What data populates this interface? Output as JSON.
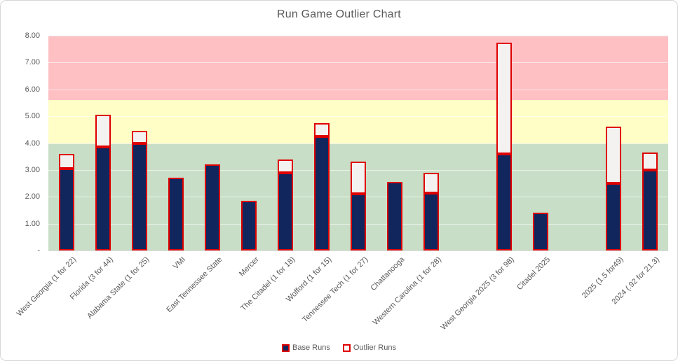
{
  "chart_data": {
    "type": "bar",
    "stacked": true,
    "title": "Run Game Outlier Chart",
    "xlabel": "",
    "ylabel": "",
    "ylim": [
      0,
      8
    ],
    "ytick_step": 1,
    "ytick_labels_top_to_bottom": [
      "8.00",
      "7.00",
      "6.00",
      "5.00",
      "4.00",
      "3.00",
      "2.00",
      "1.00",
      "-"
    ],
    "grid": true,
    "legend_position": "bottom-center",
    "categories": [
      "West Georgia (1 for 22)",
      "Florida (3 for 44)",
      "Alabama State (1 for 25)",
      "VMI",
      "East Tennessee State",
      "Mercer",
      "The Citadel (1 for 18)",
      "Wofford (1 for 15)",
      "Tennessee Tech (1 for 27)",
      "Chattanooga",
      "Western Carolina (1 for 28)",
      "",
      "West Georgia 2025 (3 for 98)",
      "Citadel 2025",
      "",
      "2025 (1.5 for49)",
      "2024 (.92 for 21.3)"
    ],
    "series": [
      {
        "name": "Base Runs",
        "fill_color": "#12265E",
        "border_color": "#DF0000",
        "values": [
          3.05,
          3.85,
          4.0,
          2.7,
          3.2,
          1.85,
          2.9,
          4.25,
          2.1,
          2.55,
          2.15,
          null,
          3.6,
          1.4,
          null,
          2.5,
          3.0
        ]
      },
      {
        "name": "Outlier Runs",
        "fill_color": "#F4F2F1",
        "border_color": "#DF0000",
        "values": [
          0.55,
          1.2,
          0.45,
          0,
          0,
          0,
          0.5,
          0.5,
          1.2,
          0,
          0.75,
          null,
          4.15,
          0,
          null,
          2.1,
          0.65
        ]
      }
    ],
    "background_bands": [
      {
        "name": "green-zone",
        "from": 0,
        "to": 4,
        "color": "#C8DEC6"
      },
      {
        "name": "yellow-zone",
        "from": 4,
        "to": 5.6,
        "color": "#FEFEC6"
      },
      {
        "name": "red-zone",
        "from": 5.6,
        "to": 8,
        "color": "#FFC0C4"
      }
    ],
    "colors": {
      "title_text": "#595959",
      "axis_text": "#595959",
      "gridline": "#D9D9D9",
      "frame_border": "#D6D6D6"
    }
  }
}
